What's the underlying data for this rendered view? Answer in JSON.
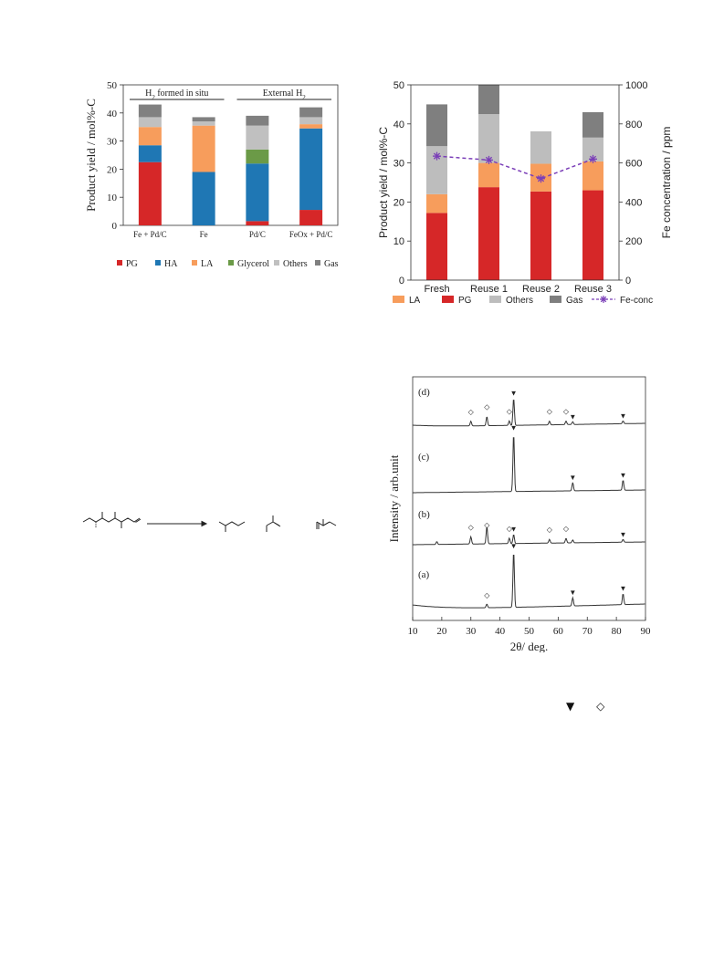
{
  "chart_data": [
    {
      "type": "bar",
      "stacked": true,
      "ylabel": "Product yield / mol%-C",
      "ylim": [
        0,
        50
      ],
      "yticks": [
        0,
        10,
        20,
        30,
        40,
        50
      ],
      "categories": [
        "Fe + Pd/C",
        "Fe",
        "Pd/C",
        "FeOx + Pd/C"
      ],
      "group_labels": [
        "H2 formed in situ",
        "External H2"
      ],
      "legend_position": "bottom",
      "series": [
        {
          "name": "PG",
          "color": "#d62728",
          "values": [
            22.5,
            0,
            1.5,
            5.5
          ]
        },
        {
          "name": "HA",
          "color": "#1f77b4",
          "values": [
            6,
            19,
            20.5,
            29
          ]
        },
        {
          "name": "LA",
          "color": "#f79d5c",
          "values": [
            6.5,
            16.5,
            0,
            1.5
          ]
        },
        {
          "name": "Glycerol",
          "color": "#6b9a47",
          "values": [
            0,
            0,
            5,
            0
          ]
        },
        {
          "name": "Others",
          "color": "#c0c0c0",
          "values": [
            3.5,
            1.5,
            8.5,
            2.5
          ]
        },
        {
          "name": "Gas",
          "color": "#808080",
          "values": [
            4.5,
            1.5,
            3.5,
            3.5
          ]
        }
      ]
    },
    {
      "type": "bar",
      "stacked": true,
      "ylabel": "Product yield / mol%-C",
      "y2label": "Fe concentration / ppm",
      "ylim": [
        0,
        50
      ],
      "y2lim": [
        0,
        1000
      ],
      "yticks": [
        0,
        10,
        20,
        30,
        40,
        50
      ],
      "y2ticks": [
        0,
        200,
        400,
        600,
        800,
        1000
      ],
      "categories": [
        "Fresh",
        "Reuse 1",
        "Reuse 2",
        "Reuse 3"
      ],
      "legend_position": "bottom",
      "series": [
        {
          "name": "PG",
          "color": "#d62728",
          "values": [
            17.2,
            23.8,
            22.7,
            23
          ]
        },
        {
          "name": "LA",
          "color": "#f79d5c",
          "values": [
            4.8,
            6.2,
            7.1,
            7.4
          ]
        },
        {
          "name": "Others",
          "color": "#bdbdbd",
          "values": [
            12.3,
            12.5,
            8.3,
            6.1
          ]
        },
        {
          "name": "Gas",
          "color": "#7f7f7f",
          "values": [
            10.7,
            7.5,
            0,
            6.5
          ]
        }
      ],
      "legend_order": [
        "LA",
        "PG",
        "Others",
        "Gas",
        "Fe-conc"
      ],
      "line_series": {
        "name": "Fe-conc",
        "color": "#7b3fb8",
        "axis": "right",
        "values": [
          635,
          615,
          520,
          620
        ]
      }
    },
    {
      "type": "line",
      "xlabel": "2θ/ deg.",
      "ylabel": "Intensity / arb.unit",
      "xlim": [
        10,
        90
      ],
      "xticks": [
        10,
        20,
        30,
        40,
        50,
        60,
        70,
        80,
        90
      ],
      "series": [
        {
          "name": "(d)",
          "peaks": [
            {
              "x": 30,
              "h": 5
            },
            {
              "x": 35.5,
              "h": 10
            },
            {
              "x": 43.2,
              "h": 5
            },
            {
              "x": 44.7,
              "h": 30
            },
            {
              "x": 57,
              "h": 4
            },
            {
              "x": 62.7,
              "h": 4
            },
            {
              "x": 65,
              "h": 3
            },
            {
              "x": 82.3,
              "h": 3
            }
          ],
          "markers": [
            {
              "x": 30,
              "s": "◇"
            },
            {
              "x": 35.5,
              "s": "◇"
            },
            {
              "x": 43.2,
              "s": "◇"
            },
            {
              "x": 44.7,
              "s": "▼"
            },
            {
              "x": 57,
              "s": "◇"
            },
            {
              "x": 62.7,
              "s": "◇"
            },
            {
              "x": 65,
              "s": "▼"
            },
            {
              "x": 82.3,
              "s": "▼"
            }
          ]
        },
        {
          "name": "(c)",
          "peaks": [
            {
              "x": 44.7,
              "h": 64
            },
            {
              "x": 65,
              "h": 9
            },
            {
              "x": 82.3,
              "h": 11
            }
          ],
          "markers": [
            {
              "x": 44.7,
              "s": "▼"
            },
            {
              "x": 65,
              "s": "▼"
            },
            {
              "x": 82.3,
              "s": "▼"
            }
          ]
        },
        {
          "name": "(b)",
          "peaks": [
            {
              "x": 18.3,
              "h": 3
            },
            {
              "x": 30,
              "h": 8
            },
            {
              "x": 35.5,
              "h": 19
            },
            {
              "x": 43.2,
              "h": 6
            },
            {
              "x": 44.7,
              "h": 10
            },
            {
              "x": 57,
              "h": 4
            },
            {
              "x": 62.7,
              "h": 5
            },
            {
              "x": 65,
              "h": 3
            },
            {
              "x": 82.3,
              "h": 3
            }
          ],
          "markers": [
            {
              "x": 30,
              "s": "◇"
            },
            {
              "x": 35.5,
              "s": "◇"
            },
            {
              "x": 43.2,
              "s": "◇"
            },
            {
              "x": 44.7,
              "s": "▼"
            },
            {
              "x": 57,
              "s": "◇"
            },
            {
              "x": 62.7,
              "s": "◇"
            },
            {
              "x": 82.3,
              "s": "▼"
            }
          ]
        },
        {
          "name": "(a)",
          "peaks": [
            {
              "x": 35.5,
              "h": 4
            },
            {
              "x": 44.7,
              "h": 62
            },
            {
              "x": 65,
              "h": 9
            },
            {
              "x": 82.3,
              "h": 12
            }
          ],
          "markers": [
            {
              "x": 35.5,
              "s": "◇"
            },
            {
              "x": 44.7,
              "s": "▼"
            },
            {
              "x": 65,
              "s": "▼"
            },
            {
              "x": 82.3,
              "s": "▼"
            }
          ]
        }
      ]
    }
  ],
  "caption_symbols": [
    "▼",
    "◇"
  ]
}
